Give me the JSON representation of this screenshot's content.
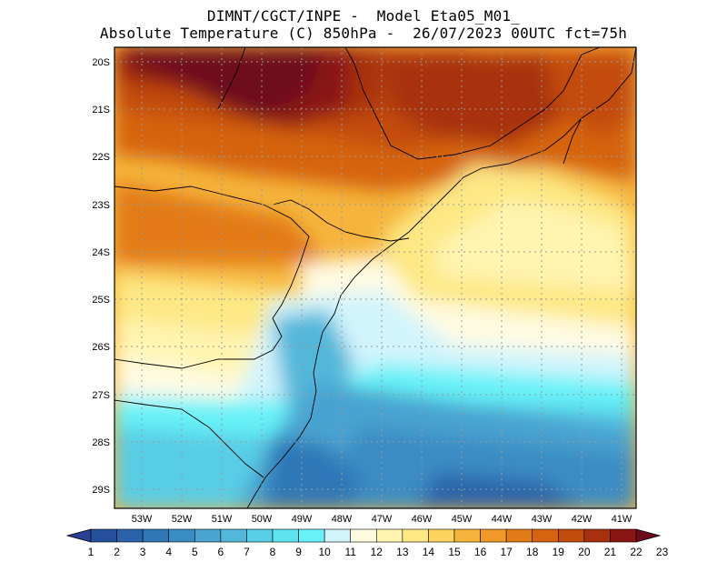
{
  "title": {
    "line1": "DIMNT/CGCT/INPE -  Model Eta05_M01_",
    "line2": "Absolute Temperature (C) 850hPa -  26/07/2023 00UTC fct=75h"
  },
  "latitude_labels": [
    "20S",
    "21S",
    "22S",
    "23S",
    "24S",
    "25S",
    "26S",
    "27S",
    "28S",
    "29S"
  ],
  "longitude_labels": [
    "53W",
    "52W",
    "51W",
    "50W",
    "49W",
    "48W",
    "47W",
    "46W",
    "45W",
    "44W",
    "43W",
    "42W",
    "41W"
  ],
  "colorbar": {
    "labels": [
      "1",
      "2",
      "3",
      "4",
      "5",
      "6",
      "7",
      "8",
      "9",
      "10",
      "11",
      "12",
      "13",
      "14",
      "15",
      "16",
      "17",
      "18",
      "19",
      "20",
      "21",
      "22",
      "23"
    ],
    "colors": [
      "#2b3f94",
      "#264f9e",
      "#2b63aa",
      "#2f78b8",
      "#3a8cc4",
      "#4aa3d0",
      "#52b7da",
      "#58cde6",
      "#5ee4f0",
      "#66f2f8",
      "#d2f4fd",
      "#fffbe2",
      "#fff4b0",
      "#fde884",
      "#fbd35e",
      "#f6b43c",
      "#f09828",
      "#e37a18",
      "#d56310",
      "#c24c0c",
      "#a8300e",
      "#8a1614",
      "#6e0a1c"
    ]
  },
  "map": {
    "region": "South/Southeast Brazil",
    "field": "Absolute Temperature 850hPa"
  }
}
